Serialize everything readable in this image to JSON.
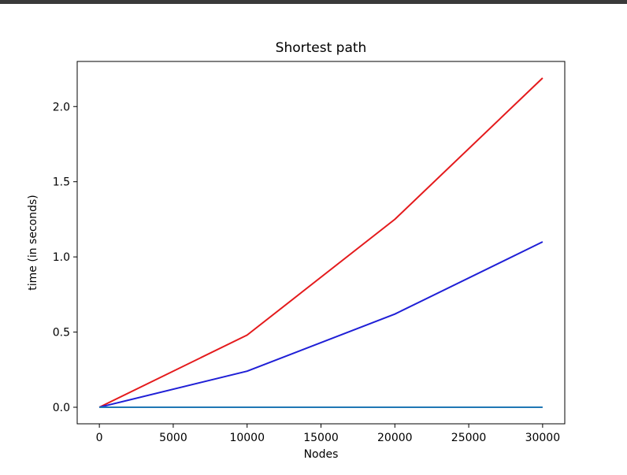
{
  "chart_data": {
    "type": "line",
    "title": "Shortest path",
    "xlabel": "Nodes",
    "ylabel": "time (in seconds)",
    "xlim": [
      -1500,
      31500
    ],
    "ylim": [
      -0.11,
      2.3
    ],
    "x_ticks": [
      0,
      5000,
      10000,
      15000,
      20000,
      25000,
      30000
    ],
    "x_tick_labels": [
      "0",
      "5000",
      "10000",
      "15000",
      "20000",
      "25000",
      "30000"
    ],
    "y_ticks": [
      0.0,
      0.5,
      1.0,
      1.5,
      2.0
    ],
    "y_tick_labels": [
      "0.0",
      "0.5",
      "1.0",
      "1.5",
      "2.0"
    ],
    "grid": false,
    "x": [
      0,
      10000,
      20000,
      30000
    ],
    "series": [
      {
        "color": "#e41a1c",
        "values": [
          0.0,
          0.48,
          1.25,
          2.19
        ]
      },
      {
        "color": "#1f1fd6",
        "values": [
          0.0,
          0.24,
          0.62,
          1.1
        ]
      },
      {
        "color": "#1f77b4",
        "values": [
          0.0,
          0.0,
          0.0,
          0.0
        ]
      }
    ]
  }
}
